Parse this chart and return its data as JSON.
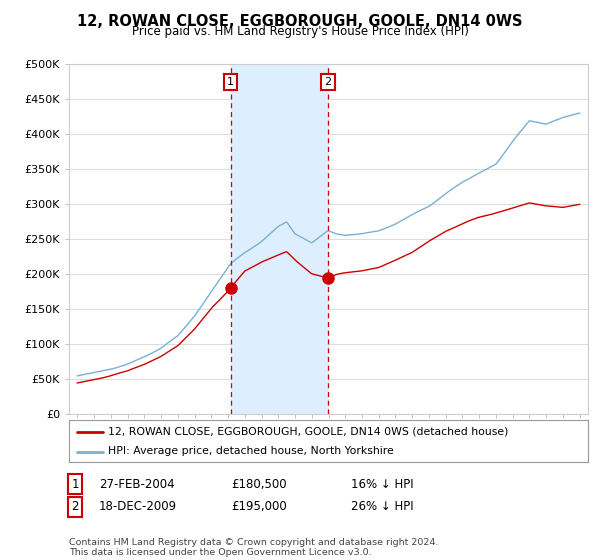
{
  "title": "12, ROWAN CLOSE, EGGBOROUGH, GOOLE, DN14 0WS",
  "subtitle": "Price paid vs. HM Land Registry's House Price Index (HPI)",
  "legend_line1": "12, ROWAN CLOSE, EGGBOROUGH, GOOLE, DN14 0WS (detached house)",
  "legend_line2": "HPI: Average price, detached house, North Yorkshire",
  "footer": "Contains HM Land Registry data © Crown copyright and database right 2024.\nThis data is licensed under the Open Government Licence v3.0.",
  "sale1_label": "1",
  "sale1_date": "27-FEB-2004",
  "sale1_price": 180500,
  "sale1_year": 2004.15,
  "sale1_below": "16% ↓ HPI",
  "sale2_label": "2",
  "sale2_date": "18-DEC-2009",
  "sale2_price": 195000,
  "sale2_year": 2009.96,
  "sale2_below": "26% ↓ HPI",
  "ylim": [
    0,
    500000
  ],
  "xlim": [
    1994.5,
    2025.5
  ],
  "yticks": [
    0,
    50000,
    100000,
    150000,
    200000,
    250000,
    300000,
    350000,
    400000,
    450000,
    500000
  ],
  "ytick_labels": [
    "£0",
    "£50K",
    "£100K",
    "£150K",
    "£200K",
    "£250K",
    "£300K",
    "£350K",
    "£400K",
    "£450K",
    "£500K"
  ],
  "red_line_color": "#cc0000",
  "blue_line_color": "#7ab0d4",
  "shade_color": "#ddeeff",
  "vline_color": "#cc0000",
  "marker_color": "#cc0000",
  "box_color": "#cc0000",
  "background_color": "#ffffff",
  "grid_color": "#dddddd",
  "hpi_keypoints": [
    [
      1995.0,
      55000
    ],
    [
      1996.0,
      60000
    ],
    [
      1997.0,
      65000
    ],
    [
      1998.0,
      72000
    ],
    [
      1999.0,
      82000
    ],
    [
      2000.0,
      95000
    ],
    [
      2001.0,
      112000
    ],
    [
      2002.0,
      140000
    ],
    [
      2003.0,
      175000
    ],
    [
      2004.15,
      215000
    ],
    [
      2005.0,
      232000
    ],
    [
      2006.0,
      248000
    ],
    [
      2007.0,
      268000
    ],
    [
      2007.5,
      275000
    ],
    [
      2008.0,
      258000
    ],
    [
      2009.0,
      245000
    ],
    [
      2009.96,
      263000
    ],
    [
      2010.5,
      258000
    ],
    [
      2011.0,
      256000
    ],
    [
      2012.0,
      258000
    ],
    [
      2013.0,
      262000
    ],
    [
      2014.0,
      272000
    ],
    [
      2015.0,
      285000
    ],
    [
      2016.0,
      298000
    ],
    [
      2017.0,
      315000
    ],
    [
      2018.0,
      332000
    ],
    [
      2019.0,
      345000
    ],
    [
      2020.0,
      358000
    ],
    [
      2021.0,
      390000
    ],
    [
      2022.0,
      420000
    ],
    [
      2023.0,
      415000
    ],
    [
      2024.0,
      425000
    ],
    [
      2025.0,
      430000
    ]
  ],
  "red_keypoints": [
    [
      1995.0,
      45000
    ],
    [
      1996.0,
      50000
    ],
    [
      1997.0,
      56000
    ],
    [
      1998.0,
      62000
    ],
    [
      1999.0,
      72000
    ],
    [
      2000.0,
      83000
    ],
    [
      2001.0,
      98000
    ],
    [
      2002.0,
      122000
    ],
    [
      2003.0,
      152000
    ],
    [
      2004.15,
      180500
    ],
    [
      2005.0,
      205000
    ],
    [
      2006.0,
      218000
    ],
    [
      2007.0,
      228000
    ],
    [
      2007.5,
      232000
    ],
    [
      2008.0,
      220000
    ],
    [
      2009.0,
      200000
    ],
    [
      2009.96,
      195000
    ],
    [
      2010.5,
      200000
    ],
    [
      2011.0,
      202000
    ],
    [
      2012.0,
      205000
    ],
    [
      2013.0,
      210000
    ],
    [
      2014.0,
      220000
    ],
    [
      2015.0,
      232000
    ],
    [
      2016.0,
      248000
    ],
    [
      2017.0,
      262000
    ],
    [
      2018.0,
      272000
    ],
    [
      2019.0,
      282000
    ],
    [
      2020.0,
      288000
    ],
    [
      2021.0,
      295000
    ],
    [
      2022.0,
      302000
    ],
    [
      2023.0,
      298000
    ],
    [
      2024.0,
      296000
    ],
    [
      2025.0,
      300000
    ]
  ]
}
